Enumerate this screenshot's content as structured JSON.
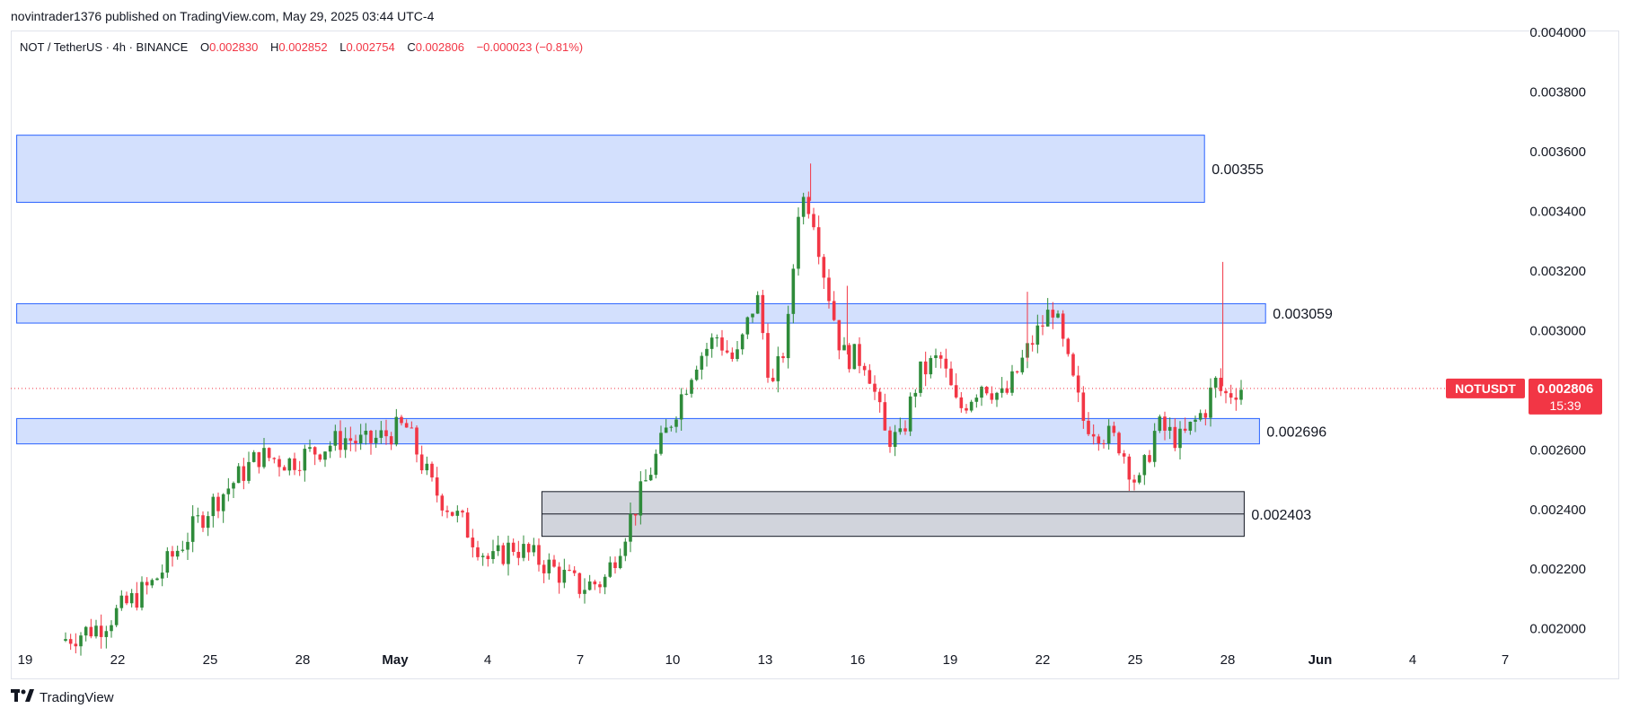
{
  "banner": "novintrader1376 published on TradingView.com, May 29, 2025 03:44 UTC-4",
  "legend": {
    "symbol": "NOT / TetherUS · 4h · BINANCE",
    "o_label": "O",
    "o": "0.002830",
    "h_label": "H",
    "h": "0.002852",
    "l_label": "L",
    "l": "0.002754",
    "c_label": "C",
    "c": "0.002806",
    "change": "−0.000023 (−0.81%)"
  },
  "footer": {
    "brand": "TradingView",
    "icon": "tradingview-logo-icon"
  },
  "colors": {
    "up": "#26a69a",
    "up_body": "#2e8b3a",
    "down": "#f23645",
    "zone_blue_fill": "#d3e0fd",
    "zone_blue_border": "#2962ff",
    "zone_gray_fill": "#d1d4dc",
    "zone_gray_border": "#131722",
    "price_label": "#f23645"
  },
  "chart_data": {
    "type": "candlestick",
    "x_tick_labels": [
      "19",
      "22",
      "25",
      "28",
      "May",
      "4",
      "7",
      "10",
      "13",
      "16",
      "19",
      "22",
      "25",
      "28",
      "Jun",
      "4",
      "7"
    ],
    "y_tick_labels": [
      "0.004000",
      "0.003800",
      "0.003600",
      "0.003400",
      "0.003200",
      "0.003000",
      "0.002800",
      "0.002600",
      "0.002400",
      "0.002200",
      "0.002000"
    ],
    "ylim": [
      0.00196,
      0.004
    ],
    "current_price": {
      "symbol": "NOTUSDT",
      "value": "0.002806",
      "countdown": "15:39",
      "numeric": 0.002806
    },
    "zones": [
      {
        "label": "0.00355",
        "top": 0.003655,
        "bottom": 0.00343,
        "kind": "blue",
        "x_start_day": -0.1,
        "x_end_day": 38.8
      },
      {
        "label": "0.003059",
        "top": 0.00309,
        "bottom": 0.003025,
        "kind": "blue",
        "x_start_day": -0.1,
        "x_end_day": 40.8
      },
      {
        "label": "0.002696",
        "top": 0.002705,
        "bottom": 0.00262,
        "kind": "blue",
        "x_start_day": -0.1,
        "x_end_day": 40.6
      },
      {
        "label": "0.002403",
        "top": 0.00246,
        "bottom": 0.00231,
        "mid": 0.002385,
        "kind": "gray",
        "x_start_day": 17.1,
        "x_end_day": 40.1
      }
    ],
    "anchors": [
      {
        "day": 1.5,
        "price": 0.00196
      },
      {
        "day": 2.8,
        "price": 0.00201
      },
      {
        "day": 4.5,
        "price": 0.00215
      },
      {
        "day": 6.3,
        "price": 0.0024
      },
      {
        "day": 8.0,
        "price": 0.00258
      },
      {
        "day": 9.0,
        "price": 0.00256
      },
      {
        "day": 10.8,
        "price": 0.00264
      },
      {
        "day": 11.5,
        "price": 0.00262
      },
      {
        "day": 12.8,
        "price": 0.00268
      },
      {
        "day": 13.7,
        "price": 0.00247
      },
      {
        "day": 14.7,
        "price": 0.00235
      },
      {
        "day": 15.6,
        "price": 0.00222
      },
      {
        "day": 16.3,
        "price": 0.00228
      },
      {
        "day": 17.5,
        "price": 0.00221
      },
      {
        "day": 18.5,
        "price": 0.00214
      },
      {
        "day": 19.3,
        "price": 0.00216
      },
      {
        "day": 20.5,
        "price": 0.00245
      },
      {
        "day": 21.5,
        "price": 0.0027
      },
      {
        "day": 22.3,
        "price": 0.0029
      },
      {
        "day": 23.0,
        "price": 0.00298
      },
      {
        "day": 23.6,
        "price": 0.00289
      },
      {
        "day": 24.3,
        "price": 0.00312
      },
      {
        "day": 24.8,
        "price": 0.0028
      },
      {
        "day": 25.3,
        "price": 0.00298
      },
      {
        "day": 25.7,
        "price": 0.00345
      },
      {
        "day": 26.1,
        "price": 0.00342
      },
      {
        "day": 26.5,
        "price": 0.0032
      },
      {
        "day": 27.1,
        "price": 0.00292
      },
      {
        "day": 27.9,
        "price": 0.0029
      },
      {
        "day": 28.5,
        "price": 0.00265
      },
      {
        "day": 29.0,
        "price": 0.00263
      },
      {
        "day": 29.6,
        "price": 0.00285
      },
      {
        "day": 30.3,
        "price": 0.00291
      },
      {
        "day": 30.9,
        "price": 0.00273
      },
      {
        "day": 31.7,
        "price": 0.00283
      },
      {
        "day": 32.4,
        "price": 0.00277
      },
      {
        "day": 33.3,
        "price": 0.00296
      },
      {
        "day": 34.0,
        "price": 0.00308
      },
      {
        "day": 34.4,
        "price": 0.00292
      },
      {
        "day": 35.0,
        "price": 0.0027
      },
      {
        "day": 36.2,
        "price": 0.00262
      },
      {
        "day": 36.8,
        "price": 0.00247
      },
      {
        "day": 37.4,
        "price": 0.00268
      },
      {
        "day": 38.2,
        "price": 0.00263
      },
      {
        "day": 39.0,
        "price": 0.00274
      },
      {
        "day": 39.3,
        "price": 0.00283
      },
      {
        "day": 39.6,
        "price": 0.00278
      },
      {
        "day": 40.1,
        "price": 0.00281
      }
    ],
    "spikes": [
      {
        "day": 27.1,
        "high": 0.00315
      },
      {
        "day": 33.0,
        "high": 0.00313
      },
      {
        "day": 39.4,
        "high": 0.00323
      },
      {
        "day": 25.9,
        "high": 0.00356
      }
    ]
  }
}
